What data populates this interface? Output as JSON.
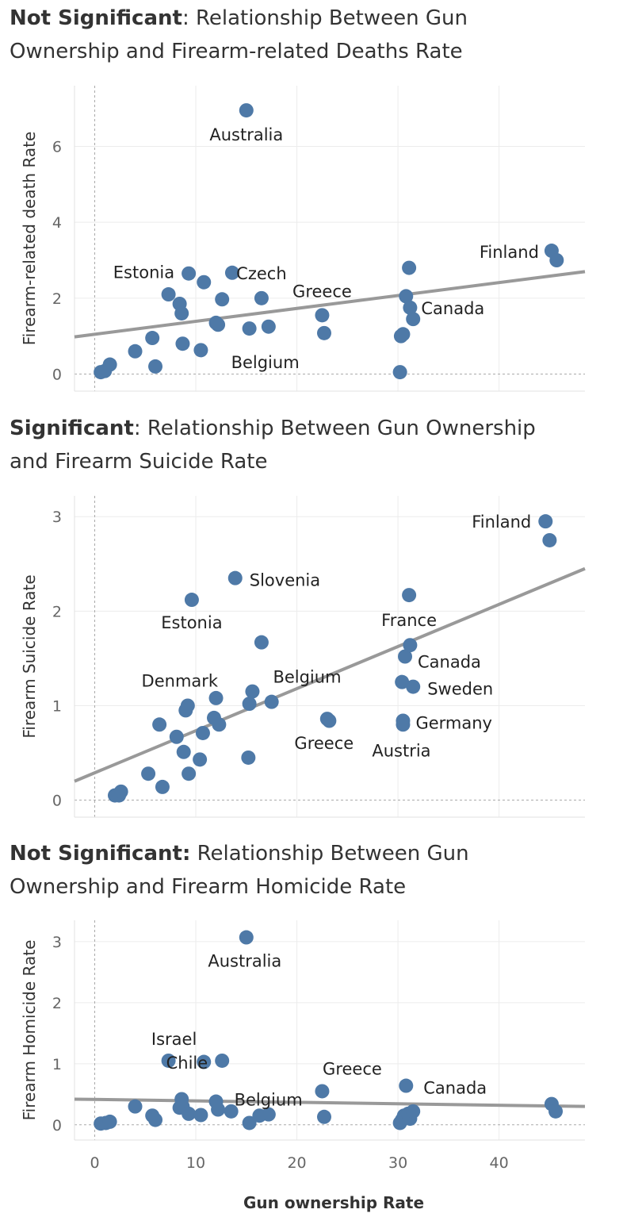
{
  "xaxis": {
    "label": "Gun ownership Rate",
    "ticks": [
      0,
      10,
      20,
      30,
      40
    ],
    "range": [
      -2,
      48.5
    ]
  },
  "chart_data": [
    {
      "type": "scatter",
      "title_bold": "Not Significant",
      "title_rest": ": Relationship Between Gun Ownership and Firearm-related Deaths Rate",
      "ylabel": "Firearm-related death Rate",
      "yticks": [
        0,
        2,
        4,
        6
      ],
      "ylim": [
        -0.45,
        7.6
      ],
      "trend": [
        [
          -2,
          0.98
        ],
        [
          48.5,
          2.7
        ]
      ],
      "color": "#4e79a7",
      "trend_color": "#999999",
      "points": [
        [
          0.6,
          0.05
        ],
        [
          1.0,
          0.08
        ],
        [
          1.5,
          0.25
        ],
        [
          4.0,
          0.6
        ],
        [
          5.7,
          0.95
        ],
        [
          6.0,
          0.2
        ],
        [
          7.3,
          2.1
        ],
        [
          8.4,
          1.85
        ],
        [
          8.6,
          1.6
        ],
        [
          8.7,
          0.8
        ],
        [
          9.3,
          2.65
        ],
        [
          10.5,
          0.63
        ],
        [
          10.8,
          2.42
        ],
        [
          12.0,
          1.35
        ],
        [
          12.2,
          1.3
        ],
        [
          12.6,
          1.97
        ],
        [
          13.6,
          2.67
        ],
        [
          15.0,
          6.95
        ],
        [
          15.3,
          1.2
        ],
        [
          16.5,
          2.0
        ],
        [
          17.2,
          1.25
        ],
        [
          22.5,
          1.55
        ],
        [
          22.7,
          1.08
        ],
        [
          30.2,
          0.05
        ],
        [
          30.3,
          1.0
        ],
        [
          30.5,
          1.05
        ],
        [
          30.8,
          2.05
        ],
        [
          31.1,
          2.8
        ],
        [
          31.2,
          1.75
        ],
        [
          31.5,
          1.45
        ],
        [
          45.2,
          3.25
        ],
        [
          45.7,
          3.0
        ]
      ],
      "labels": [
        {
          "text": "Australia",
          "x": 15.0,
          "y": 6.95
        },
        {
          "text": "Estonia",
          "x": 9.3,
          "y": 2.65
        },
        {
          "text": "Czech",
          "x": 16.5,
          "y": 2.0
        },
        {
          "text": "Greece",
          "x": 22.5,
          "y": 1.55
        },
        {
          "text": "Canada",
          "x": 31.2,
          "y": 1.75
        },
        {
          "text": "Finland",
          "x": 45.2,
          "y": 3.25
        },
        {
          "text": "Belgium",
          "x": 15.3,
          "y": 1.2
        }
      ]
    },
    {
      "type": "scatter",
      "title_bold": "Significant",
      "title_rest": ": Relationship Between Gun Ownership and Firearm Suicide Rate",
      "ylabel": "Firearm Suicide Rate",
      "yticks": [
        0,
        1,
        2,
        3
      ],
      "ylim": [
        -0.18,
        3.22
      ],
      "trend": [
        [
          -2,
          0.2
        ],
        [
          48.5,
          2.45
        ]
      ],
      "color": "#4e79a7",
      "trend_color": "#999999",
      "points": [
        [
          2.0,
          0.05
        ],
        [
          2.4,
          0.05
        ],
        [
          2.6,
          0.09
        ],
        [
          5.3,
          0.28
        ],
        [
          6.4,
          0.8
        ],
        [
          6.7,
          0.14
        ],
        [
          8.1,
          0.67
        ],
        [
          8.8,
          0.51
        ],
        [
          9.0,
          0.95
        ],
        [
          9.2,
          1.0
        ],
        [
          9.3,
          0.28
        ],
        [
          9.6,
          2.12
        ],
        [
          10.4,
          0.43
        ],
        [
          10.7,
          0.71
        ],
        [
          11.8,
          0.87
        ],
        [
          12.0,
          1.08
        ],
        [
          12.3,
          0.8
        ],
        [
          13.9,
          2.35
        ],
        [
          15.2,
          0.45
        ],
        [
          15.3,
          1.02
        ],
        [
          15.6,
          1.15
        ],
        [
          16.5,
          1.67
        ],
        [
          17.5,
          1.04
        ],
        [
          23.0,
          0.86
        ],
        [
          23.2,
          0.84
        ],
        [
          30.4,
          1.25
        ],
        [
          30.5,
          0.8
        ],
        [
          30.5,
          0.84
        ],
        [
          30.7,
          1.52
        ],
        [
          31.1,
          2.17
        ],
        [
          31.2,
          1.64
        ],
        [
          31.5,
          1.2
        ],
        [
          44.6,
          2.95
        ],
        [
          45.0,
          2.75
        ]
      ],
      "labels": [
        {
          "text": "Finland",
          "x": 44.6,
          "y": 2.95
        },
        {
          "text": "Slovenia",
          "x": 13.9,
          "y": 2.35
        },
        {
          "text": "Estonia",
          "x": 9.6,
          "y": 2.12
        },
        {
          "text": "France",
          "x": 31.1,
          "y": 2.17
        },
        {
          "text": "Canada",
          "x": 30.7,
          "y": 1.52
        },
        {
          "text": "Denmark",
          "x": 9.2,
          "y": 1.0
        },
        {
          "text": "Belgium",
          "x": 15.6,
          "y": 1.15
        },
        {
          "text": "Sweden",
          "x": 31.5,
          "y": 1.2
        },
        {
          "text": "Germany",
          "x": 30.5,
          "y": 0.84
        },
        {
          "text": "Greece",
          "x": 23.0,
          "y": 0.86
        },
        {
          "text": "Austria",
          "x": 30.5,
          "y": 0.8
        }
      ]
    },
    {
      "type": "scatter",
      "title_bold": "Not Significant:",
      "title_rest": " Relationship Between Gun Ownership and Firearm Homicide Rate",
      "ylabel": "Firearm Homicide Rate",
      "yticks": [
        0,
        1,
        2,
        3
      ],
      "ylim": [
        -0.25,
        3.35
      ],
      "trend": [
        [
          -2,
          0.42
        ],
        [
          48.5,
          0.3
        ]
      ],
      "color": "#4e79a7",
      "trend_color": "#999999",
      "points": [
        [
          0.6,
          0.02
        ],
        [
          1.1,
          0.03
        ],
        [
          1.5,
          0.05
        ],
        [
          4.0,
          0.3
        ],
        [
          5.7,
          0.15
        ],
        [
          6.0,
          0.08
        ],
        [
          7.3,
          1.05
        ],
        [
          8.4,
          0.28
        ],
        [
          8.6,
          0.42
        ],
        [
          8.7,
          0.3
        ],
        [
          9.3,
          0.18
        ],
        [
          10.5,
          0.16
        ],
        [
          10.8,
          1.03
        ],
        [
          12.0,
          0.38
        ],
        [
          12.2,
          0.25
        ],
        [
          12.6,
          1.05
        ],
        [
          13.5,
          0.22
        ],
        [
          15.0,
          3.07
        ],
        [
          15.3,
          0.03
        ],
        [
          16.3,
          0.15
        ],
        [
          17.2,
          0.17
        ],
        [
          22.5,
          0.55
        ],
        [
          22.7,
          0.13
        ],
        [
          30.2,
          0.03
        ],
        [
          30.4,
          0.08
        ],
        [
          30.6,
          0.15
        ],
        [
          30.8,
          0.64
        ],
        [
          31.0,
          0.18
        ],
        [
          31.2,
          0.1
        ],
        [
          31.5,
          0.22
        ],
        [
          45.2,
          0.34
        ],
        [
          45.6,
          0.22
        ]
      ],
      "labels": [
        {
          "text": "Australia",
          "x": 15.0,
          "y": 3.07
        },
        {
          "text": "Chile",
          "x": 12.6,
          "y": 1.05
        },
        {
          "text": "Israel",
          "x": 7.3,
          "y": 1.05
        },
        {
          "text": "Greece",
          "x": 22.5,
          "y": 0.55
        },
        {
          "text": "Belgium",
          "x": 15.3,
          "y": 0.03
        },
        {
          "text": "Canada",
          "x": 30.8,
          "y": 0.64
        }
      ]
    }
  ]
}
